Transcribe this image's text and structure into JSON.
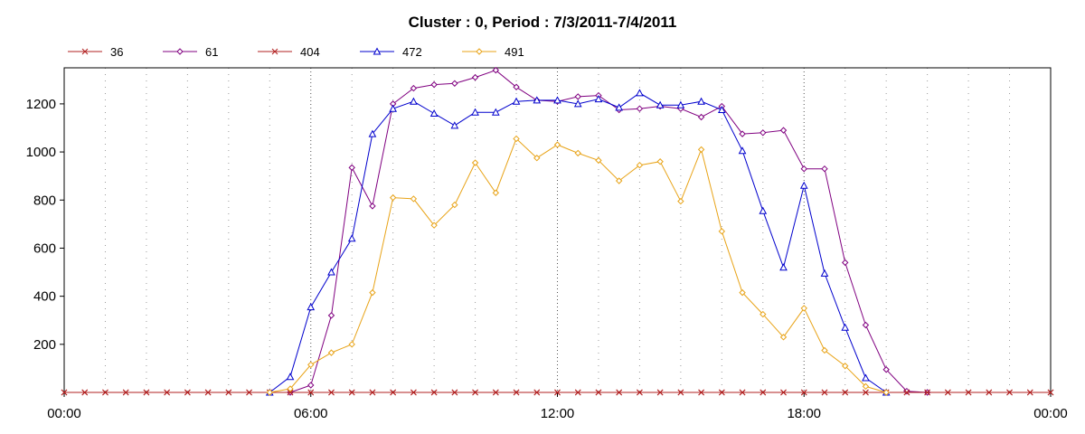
{
  "chart_data": {
    "type": "line",
    "title": "Cluster : 0, Period : 7/3/2011-7/4/2011",
    "xlabel": "",
    "ylabel": "",
    "x_ticks": [
      {
        "value": 0,
        "label": "00:00"
      },
      {
        "value": 6,
        "label": "06:00"
      },
      {
        "value": 12,
        "label": "12:00"
      },
      {
        "value": 18,
        "label": "18:00"
      },
      {
        "value": 24,
        "label": "00:00"
      }
    ],
    "y_ticks": [
      200,
      400,
      600,
      800,
      1000,
      1200
    ],
    "xlim": [
      0,
      24
    ],
    "ylim": [
      0,
      1350
    ],
    "grid": "vertical dotted, hourly",
    "legend_position": "top-left",
    "series": [
      {
        "name": "36",
        "color": "#b22222",
        "marker": "x",
        "x": [
          0,
          0.5,
          1,
          1.5,
          2,
          2.5,
          3,
          3.5,
          4,
          4.5,
          5,
          5.5,
          6,
          6.5,
          7,
          7.5,
          8,
          8.5,
          9,
          9.5,
          10,
          10.5,
          11,
          11.5,
          12,
          12.5,
          13,
          13.5,
          14,
          14.5,
          15,
          15.5,
          16,
          16.5,
          17,
          17.5,
          18,
          18.5,
          19,
          19.5,
          20,
          20.5,
          21,
          21.5,
          22,
          22.5,
          23,
          23.5,
          24
        ],
        "y": [
          0,
          0,
          0,
          0,
          0,
          0,
          0,
          0,
          0,
          0,
          0,
          0,
          0,
          0,
          0,
          0,
          0,
          0,
          0,
          0,
          0,
          0,
          0,
          0,
          0,
          0,
          0,
          0,
          0,
          0,
          0,
          0,
          0,
          0,
          0,
          0,
          0,
          0,
          0,
          0,
          0,
          0,
          0,
          0,
          0,
          0,
          0,
          0,
          0
        ]
      },
      {
        "name": "61",
        "color": "#800080",
        "marker": "diamond",
        "x": [
          5.5,
          6,
          6.5,
          7,
          7.5,
          8,
          8.5,
          9,
          9.5,
          10,
          10.5,
          11,
          11.5,
          12,
          12.5,
          13,
          13.5,
          14,
          14.5,
          15,
          15.5,
          16,
          16.5,
          17,
          17.5,
          18,
          18.5,
          19,
          19.5,
          20,
          20.5,
          21
        ],
        "y": [
          0,
          30,
          320,
          935,
          775,
          1200,
          1265,
          1280,
          1285,
          1310,
          1340,
          1270,
          1215,
          1210,
          1230,
          1235,
          1175,
          1180,
          1190,
          1180,
          1145,
          1190,
          1075,
          1080,
          1090,
          930,
          930,
          540,
          280,
          95,
          5,
          0
        ]
      },
      {
        "name": "404",
        "color": "#b22222",
        "marker": "x",
        "x": [
          0,
          0.5,
          1,
          1.5,
          2,
          2.5,
          3,
          3.5,
          4,
          4.5,
          5,
          5.5,
          6,
          6.5,
          7,
          7.5,
          8,
          8.5,
          9,
          9.5,
          10,
          10.5,
          11,
          11.5,
          12,
          12.5,
          13,
          13.5,
          14,
          14.5,
          15,
          15.5,
          16,
          16.5,
          17,
          17.5,
          18,
          18.5,
          19,
          19.5,
          20,
          20.5,
          21,
          21.5,
          22,
          22.5,
          23,
          23.5,
          24
        ],
        "y": [
          0,
          0,
          0,
          0,
          0,
          0,
          0,
          0,
          0,
          0,
          0,
          0,
          0,
          0,
          0,
          0,
          0,
          0,
          0,
          0,
          0,
          0,
          0,
          0,
          0,
          0,
          0,
          0,
          0,
          0,
          0,
          0,
          0,
          0,
          0,
          0,
          0,
          0,
          0,
          0,
          0,
          0,
          0,
          0,
          0,
          0,
          0,
          0,
          0
        ]
      },
      {
        "name": "472",
        "color": "#0000cd",
        "marker": "triangle",
        "x": [
          5,
          5.5,
          6,
          6.5,
          7,
          7.5,
          8,
          8.5,
          9,
          9.5,
          10,
          10.5,
          11,
          11.5,
          12,
          12.5,
          13,
          13.5,
          14,
          14.5,
          15,
          15.5,
          16,
          16.5,
          17,
          17.5,
          18,
          18.5,
          19,
          19.5,
          20
        ],
        "y": [
          0,
          65,
          355,
          500,
          640,
          1075,
          1180,
          1210,
          1160,
          1110,
          1165,
          1165,
          1210,
          1215,
          1215,
          1200,
          1220,
          1185,
          1245,
          1195,
          1195,
          1210,
          1175,
          1005,
          755,
          520,
          860,
          495,
          270,
          60,
          0
        ]
      },
      {
        "name": "491",
        "color": "#e8a317",
        "marker": "diamond",
        "x": [
          5,
          5.5,
          6,
          6.5,
          7,
          7.5,
          8,
          8.5,
          9,
          9.5,
          10,
          10.5,
          11,
          11.5,
          12,
          12.5,
          13,
          13.5,
          14,
          14.5,
          15,
          15.5,
          16,
          16.5,
          17,
          17.5,
          18,
          18.5,
          19,
          19.5,
          20
        ],
        "y": [
          0,
          15,
          115,
          165,
          200,
          415,
          810,
          805,
          695,
          780,
          955,
          830,
          1055,
          975,
          1030,
          995,
          965,
          880,
          945,
          960,
          795,
          1010,
          670,
          415,
          325,
          230,
          350,
          175,
          110,
          25,
          0
        ]
      }
    ]
  }
}
